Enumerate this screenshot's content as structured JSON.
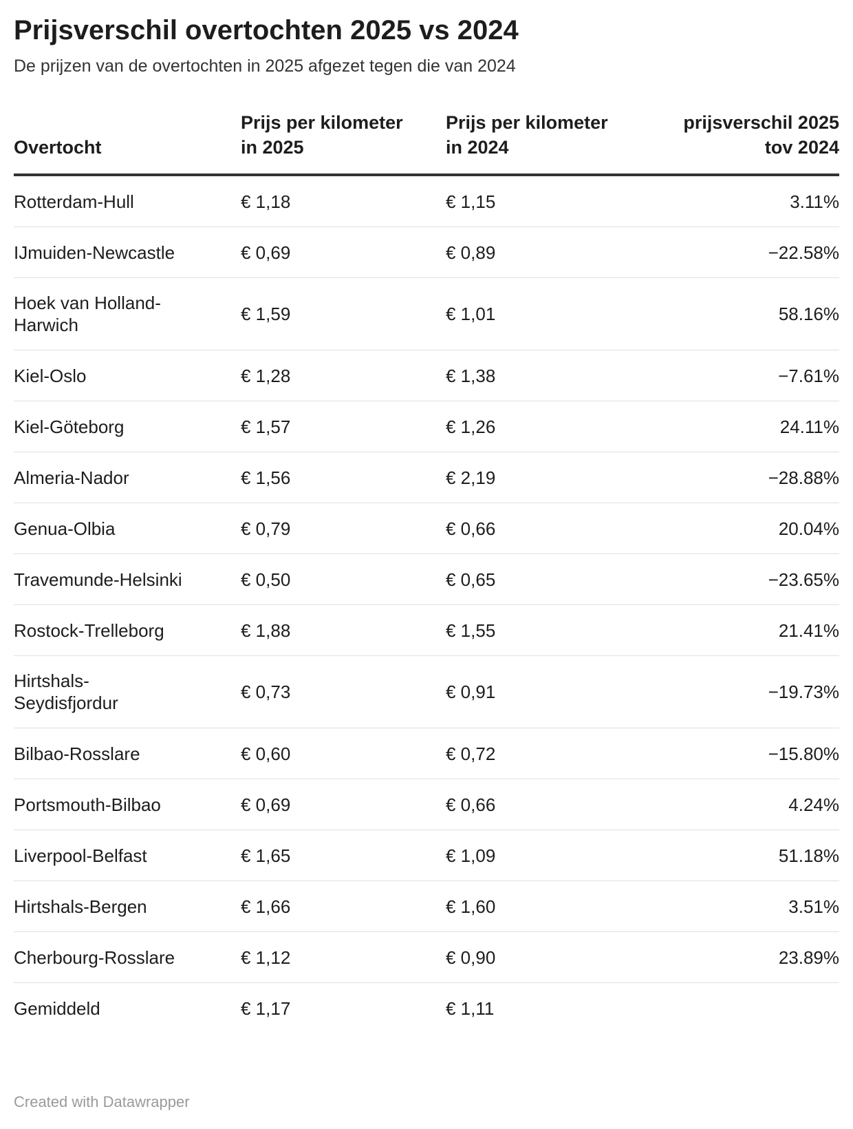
{
  "title": "Prijsverschil overtochten 2025 vs 2024",
  "subtitle": "De prijzen van de overtochten in 2025 afgezet tegen die van 2024",
  "columns": [
    "Overtocht",
    "Prijs per kilometer in 2025",
    "Prijs per kilometer in 2024",
    "prijsverschil 2025 tov 2024"
  ],
  "rows": [
    {
      "route": "Rotterdam-Hull",
      "p2025": "€ 1,18",
      "p2024": "€ 1,15",
      "diff": "3.11%"
    },
    {
      "route": "IJmuiden-Newcastle",
      "p2025": "€ 0,69",
      "p2024": "€ 0,89",
      "diff": "−22.58%"
    },
    {
      "route": "Hoek van Holland-Harwich",
      "p2025": "€ 1,59",
      "p2024": "€ 1,01",
      "diff": "58.16%"
    },
    {
      "route": "Kiel-Oslo",
      "p2025": "€ 1,28",
      "p2024": "€ 1,38",
      "diff": "−7.61%"
    },
    {
      "route": "Kiel-Göteborg",
      "p2025": "€ 1,57",
      "p2024": "€ 1,26",
      "diff": "24.11%"
    },
    {
      "route": "Almeria-Nador",
      "p2025": "€ 1,56",
      "p2024": "€ 2,19",
      "diff": "−28.88%"
    },
    {
      "route": "Genua-Olbia",
      "p2025": "€ 0,79",
      "p2024": "€ 0,66",
      "diff": "20.04%"
    },
    {
      "route": "Travemunde-Helsinki",
      "p2025": "€ 0,50",
      "p2024": "€ 0,65",
      "diff": "−23.65%"
    },
    {
      "route": "Rostock-Trelleborg",
      "p2025": "€ 1,88",
      "p2024": "€ 1,55",
      "diff": "21.41%"
    },
    {
      "route": "Hirtshals-Seydisfjordur",
      "p2025": "€ 0,73",
      "p2024": "€ 0,91",
      "diff": "−19.73%"
    },
    {
      "route": "Bilbao-Rosslare",
      "p2025": "€ 0,60",
      "p2024": "€ 0,72",
      "diff": "−15.80%"
    },
    {
      "route": "Portsmouth-Bilbao",
      "p2025": "€ 0,69",
      "p2024": "€ 0,66",
      "diff": "4.24%"
    },
    {
      "route": "Liverpool-Belfast",
      "p2025": "€ 1,65",
      "p2024": "€ 1,09",
      "diff": "51.18%"
    },
    {
      "route": "Hirtshals-Bergen",
      "p2025": "€ 1,66",
      "p2024": "€ 1,60",
      "diff": "3.51%"
    },
    {
      "route": "Cherbourg-Rosslare",
      "p2025": "€ 1,12",
      "p2024": "€ 0,90",
      "diff": "23.89%"
    },
    {
      "route": "Gemiddeld",
      "p2025": "€ 1,17",
      "p2024": "€ 1,11",
      "diff": ""
    }
  ],
  "footer": "Created with Datawrapper"
}
